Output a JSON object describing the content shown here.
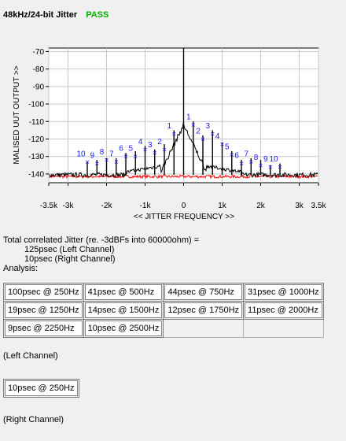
{
  "header": {
    "title": "48kHz/24-bit Jitter",
    "status": "PASS"
  },
  "chart_data": {
    "type": "line",
    "title": "",
    "xlabel": "<< JITTER FREQUENCY >>",
    "ylabel": "MALISED UUT OUTPUT >>",
    "xlim": [
      -3500,
      3500
    ],
    "ylim": [
      -145,
      -68
    ],
    "x_ticks": [
      -3500,
      -3000,
      -2000,
      -1000,
      0,
      1000,
      2000,
      3000,
      3500
    ],
    "x_tick_labels": [
      "-3.5k",
      "-3k",
      "-2k",
      "-1k",
      "0",
      "1k",
      "2k",
      "3k",
      "3.5k"
    ],
    "y_ticks": [
      -140,
      -130,
      -120,
      -110,
      -100,
      -90,
      -80,
      -70
    ],
    "y_tick_labels": [
      "-140",
      "-130",
      "-120",
      "-110",
      "-100",
      "-90",
      "-80",
      "-70"
    ],
    "grid": true,
    "series": [
      {
        "color": "#000000",
        "noise_floor": -140.5,
        "spikes": [
          {
            "x": -2500,
            "y": -133
          },
          {
            "x": -2250,
            "y": -132
          },
          {
            "x": -2000,
            "y": -131
          },
          {
            "x": -1750,
            "y": -131
          },
          {
            "x": -1500,
            "y": -128
          },
          {
            "x": -1250,
            "y": -127
          },
          {
            "x": -1000,
            "y": -124
          },
          {
            "x": -750,
            "y": -126
          },
          {
            "x": -500,
            "y": -123
          },
          {
            "x": -250,
            "y": -115
          },
          {
            "x": 0,
            "y": -68
          },
          {
            "x": 250,
            "y": -110
          },
          {
            "x": 500,
            "y": -118
          },
          {
            "x": 750,
            "y": -115
          },
          {
            "x": 1000,
            "y": -122
          },
          {
            "x": 1250,
            "y": -127
          },
          {
            "x": 1500,
            "y": -132
          },
          {
            "x": 1750,
            "y": -131
          },
          {
            "x": 2000,
            "y": -132
          },
          {
            "x": 2250,
            "y": -135
          },
          {
            "x": 2500,
            "y": -134
          }
        ]
      },
      {
        "color": "#ff0000",
        "noise_floor": -141.5,
        "spikes": []
      }
    ],
    "peak_markers": [
      {
        "label": "10",
        "x": -2500,
        "y": -133
      },
      {
        "label": "9",
        "x": -2250,
        "y": -134
      },
      {
        "label": "8",
        "x": -2000,
        "y": -132
      },
      {
        "label": "7",
        "x": -1750,
        "y": -133
      },
      {
        "label": "6",
        "x": -1500,
        "y": -130
      },
      {
        "label": "5",
        "x": -1250,
        "y": -130
      },
      {
        "label": "4",
        "x": -1000,
        "y": -126
      },
      {
        "label": "3",
        "x": -750,
        "y": -128
      },
      {
        "label": "2",
        "x": -500,
        "y": -126
      },
      {
        "label": "1",
        "x": -250,
        "y": -117
      },
      {
        "label": "1",
        "x": 250,
        "y": -112
      },
      {
        "label": "2",
        "x": 500,
        "y": -120
      },
      {
        "label": "3",
        "x": 750,
        "y": -117
      },
      {
        "label": "4",
        "x": 1000,
        "y": -123
      },
      {
        "label": "5",
        "x": 1250,
        "y": -129
      },
      {
        "label": "6",
        "x": 1500,
        "y": -134
      },
      {
        "label": "7",
        "x": 1750,
        "y": -133
      },
      {
        "label": "8",
        "x": 2000,
        "y": -135
      },
      {
        "label": "9",
        "x": 2250,
        "y": -136
      },
      {
        "label": "10",
        "x": 2500,
        "y": -136
      }
    ]
  },
  "info": {
    "line1": "Total correlated Jitter (re. -3dBFs into 60000ohm) =",
    "line2": "125psec (Left Channel)",
    "line3": "10psec (Right Channel)",
    "line4": "Analysis:"
  },
  "analysis_rows": [
    [
      "100psec @ 250Hz",
      "41psec @ 500Hz",
      "44psec @ 750Hz",
      "31psec @ 1000Hz"
    ],
    [
      "19psec @ 1250Hz",
      "14psec @ 1500Hz",
      "12psec @ 1750Hz",
      "11psec @ 2000Hz"
    ],
    [
      "9psec @ 2250Hz",
      "10psec @ 2500Hz"
    ]
  ],
  "left_channel_label": "(Left Channel)",
  "right_cell": "10psec @ 250Hz",
  "right_channel_label": "(Right Channel)"
}
